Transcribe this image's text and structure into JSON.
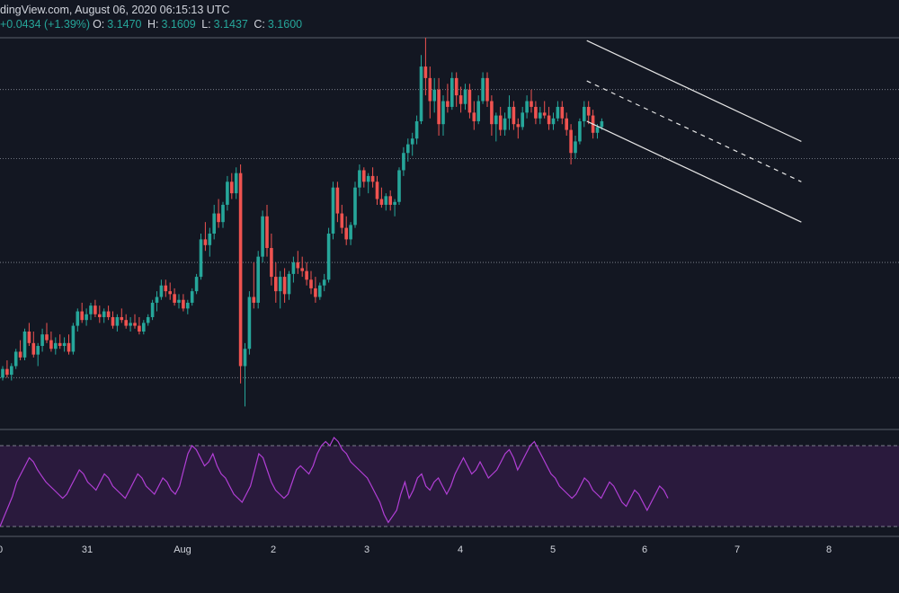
{
  "header": {
    "title_line": "dingView.com, August 06, 2020 06:15:13 UTC",
    "change": "+0.0434 (+1.39%)",
    "o_label": "O:",
    "o_value": "3.1470",
    "h_label": "H:",
    "h_value": "3.1609",
    "l_label": "L:",
    "l_value": "3.1437",
    "c_label": "C:",
    "c_value": "3.1600"
  },
  "colors": {
    "background": "#131722",
    "up": "#26a69a",
    "down": "#ef5350",
    "rsi": "#b23fd6",
    "rsi_band": "#2a1a3d",
    "channel": "#e6e6e6",
    "grid": "#8a8f99"
  },
  "chart_data": {
    "type": "candlestick",
    "x_axis": {
      "ticks": [
        "0",
        "31",
        "Aug",
        "2",
        "3",
        "4",
        "5",
        "6",
        "7",
        "8"
      ]
    },
    "y_range": [
      2.72,
      3.4
    ],
    "gridlines": [
      2.81,
      3.01,
      3.19,
      3.31
    ],
    "candles": [
      {
        "o": 2.81,
        "h": 2.83,
        "l": 2.805,
        "c": 2.825
      },
      {
        "o": 2.825,
        "h": 2.84,
        "l": 2.81,
        "c": 2.815
      },
      {
        "o": 2.815,
        "h": 2.835,
        "l": 2.805,
        "c": 2.83
      },
      {
        "o": 2.83,
        "h": 2.86,
        "l": 2.825,
        "c": 2.855
      },
      {
        "o": 2.855,
        "h": 2.875,
        "l": 2.84,
        "c": 2.845
      },
      {
        "o": 2.845,
        "h": 2.895,
        "l": 2.84,
        "c": 2.89
      },
      {
        "o": 2.89,
        "h": 2.905,
        "l": 2.865,
        "c": 2.87
      },
      {
        "o": 2.87,
        "h": 2.89,
        "l": 2.845,
        "c": 2.85
      },
      {
        "o": 2.85,
        "h": 2.87,
        "l": 2.83,
        "c": 2.865
      },
      {
        "o": 2.865,
        "h": 2.895,
        "l": 2.855,
        "c": 2.885
      },
      {
        "o": 2.885,
        "h": 2.905,
        "l": 2.87,
        "c": 2.875
      },
      {
        "o": 2.875,
        "h": 2.89,
        "l": 2.855,
        "c": 2.86
      },
      {
        "o": 2.86,
        "h": 2.88,
        "l": 2.85,
        "c": 2.87
      },
      {
        "o": 2.87,
        "h": 2.885,
        "l": 2.86,
        "c": 2.865
      },
      {
        "o": 2.865,
        "h": 2.88,
        "l": 2.855,
        "c": 2.87
      },
      {
        "o": 2.87,
        "h": 2.885,
        "l": 2.85,
        "c": 2.855
      },
      {
        "o": 2.855,
        "h": 2.905,
        "l": 2.85,
        "c": 2.9
      },
      {
        "o": 2.9,
        "h": 2.93,
        "l": 2.89,
        "c": 2.925
      },
      {
        "o": 2.925,
        "h": 2.94,
        "l": 2.905,
        "c": 2.91
      },
      {
        "o": 2.91,
        "h": 2.93,
        "l": 2.9,
        "c": 2.92
      },
      {
        "o": 2.92,
        "h": 2.94,
        "l": 2.91,
        "c": 2.935
      },
      {
        "o": 2.935,
        "h": 2.945,
        "l": 2.915,
        "c": 2.92
      },
      {
        "o": 2.92,
        "h": 2.935,
        "l": 2.905,
        "c": 2.915
      },
      {
        "o": 2.915,
        "h": 2.93,
        "l": 2.905,
        "c": 2.925
      },
      {
        "o": 2.925,
        "h": 2.935,
        "l": 2.91,
        "c": 2.915
      },
      {
        "o": 2.915,
        "h": 2.925,
        "l": 2.895,
        "c": 2.9
      },
      {
        "o": 2.9,
        "h": 2.92,
        "l": 2.89,
        "c": 2.915
      },
      {
        "o": 2.915,
        "h": 2.93,
        "l": 2.905,
        "c": 2.91
      },
      {
        "o": 2.91,
        "h": 2.92,
        "l": 2.895,
        "c": 2.9
      },
      {
        "o": 2.9,
        "h": 2.915,
        "l": 2.89,
        "c": 2.905
      },
      {
        "o": 2.905,
        "h": 2.92,
        "l": 2.895,
        "c": 2.9
      },
      {
        "o": 2.9,
        "h": 2.915,
        "l": 2.885,
        "c": 2.89
      },
      {
        "o": 2.89,
        "h": 2.91,
        "l": 2.885,
        "c": 2.905
      },
      {
        "o": 2.905,
        "h": 2.92,
        "l": 2.9,
        "c": 2.915
      },
      {
        "o": 2.915,
        "h": 2.945,
        "l": 2.91,
        "c": 2.94
      },
      {
        "o": 2.94,
        "h": 2.96,
        "l": 2.925,
        "c": 2.95
      },
      {
        "o": 2.95,
        "h": 2.98,
        "l": 2.945,
        "c": 2.97
      },
      {
        "o": 2.97,
        "h": 2.98,
        "l": 2.95,
        "c": 2.96
      },
      {
        "o": 2.96,
        "h": 2.975,
        "l": 2.945,
        "c": 2.955
      },
      {
        "o": 2.955,
        "h": 2.965,
        "l": 2.935,
        "c": 2.94
      },
      {
        "o": 2.94,
        "h": 2.955,
        "l": 2.93,
        "c": 2.945
      },
      {
        "o": 2.945,
        "h": 2.955,
        "l": 2.925,
        "c": 2.93
      },
      {
        "o": 2.93,
        "h": 2.945,
        "l": 2.92,
        "c": 2.94
      },
      {
        "o": 2.94,
        "h": 2.965,
        "l": 2.935,
        "c": 2.96
      },
      {
        "o": 2.96,
        "h": 2.99,
        "l": 2.955,
        "c": 2.985
      },
      {
        "o": 2.985,
        "h": 3.06,
        "l": 2.98,
        "c": 3.05
      },
      {
        "o": 3.05,
        "h": 3.08,
        "l": 3.03,
        "c": 3.04
      },
      {
        "o": 3.04,
        "h": 3.07,
        "l": 3.02,
        "c": 3.06
      },
      {
        "o": 3.06,
        "h": 3.11,
        "l": 3.05,
        "c": 3.095
      },
      {
        "o": 3.095,
        "h": 3.12,
        "l": 3.07,
        "c": 3.08
      },
      {
        "o": 3.08,
        "h": 3.115,
        "l": 3.07,
        "c": 3.11
      },
      {
        "o": 3.11,
        "h": 3.16,
        "l": 3.1,
        "c": 3.15
      },
      {
        "o": 3.15,
        "h": 3.165,
        "l": 3.12,
        "c": 3.13
      },
      {
        "o": 3.13,
        "h": 3.175,
        "l": 3.12,
        "c": 3.165
      },
      {
        "o": 3.165,
        "h": 3.18,
        "l": 2.8,
        "c": 2.83
      },
      {
        "o": 2.83,
        "h": 2.87,
        "l": 2.76,
        "c": 2.86
      },
      {
        "o": 2.86,
        "h": 2.96,
        "l": 2.85,
        "c": 2.95
      },
      {
        "o": 2.95,
        "h": 3.01,
        "l": 2.93,
        "c": 2.94
      },
      {
        "o": 2.94,
        "h": 3.03,
        "l": 2.93,
        "c": 3.02
      },
      {
        "o": 3.02,
        "h": 3.1,
        "l": 3.01,
        "c": 3.09
      },
      {
        "o": 3.09,
        "h": 3.11,
        "l": 3.02,
        "c": 3.035
      },
      {
        "o": 3.035,
        "h": 3.06,
        "l": 2.97,
        "c": 2.985
      },
      {
        "o": 2.985,
        "h": 3.01,
        "l": 2.94,
        "c": 2.96
      },
      {
        "o": 2.96,
        "h": 2.995,
        "l": 2.93,
        "c": 2.985
      },
      {
        "o": 2.985,
        "h": 3.0,
        "l": 2.94,
        "c": 2.955
      },
      {
        "o": 2.955,
        "h": 2.995,
        "l": 2.945,
        "c": 2.99
      },
      {
        "o": 2.99,
        "h": 3.02,
        "l": 2.975,
        "c": 3.01
      },
      {
        "o": 3.01,
        "h": 3.03,
        "l": 2.99,
        "c": 3.0
      },
      {
        "o": 3.0,
        "h": 3.02,
        "l": 2.985,
        "c": 2.995
      },
      {
        "o": 2.995,
        "h": 3.01,
        "l": 2.97,
        "c": 2.98
      },
      {
        "o": 2.98,
        "h": 2.995,
        "l": 2.955,
        "c": 2.965
      },
      {
        "o": 2.965,
        "h": 2.985,
        "l": 2.94,
        "c": 2.95
      },
      {
        "o": 2.95,
        "h": 2.975,
        "l": 2.945,
        "c": 2.97
      },
      {
        "o": 2.97,
        "h": 2.99,
        "l": 2.96,
        "c": 2.98
      },
      {
        "o": 2.98,
        "h": 3.07,
        "l": 2.975,
        "c": 3.06
      },
      {
        "o": 3.06,
        "h": 3.15,
        "l": 3.05,
        "c": 3.14
      },
      {
        "o": 3.14,
        "h": 3.15,
        "l": 3.08,
        "c": 3.095
      },
      {
        "o": 3.095,
        "h": 3.11,
        "l": 3.06,
        "c": 3.07
      },
      {
        "o": 3.07,
        "h": 3.09,
        "l": 3.04,
        "c": 3.05
      },
      {
        "o": 3.05,
        "h": 3.08,
        "l": 3.04,
        "c": 3.075
      },
      {
        "o": 3.075,
        "h": 3.15,
        "l": 3.07,
        "c": 3.14
      },
      {
        "o": 3.14,
        "h": 3.18,
        "l": 3.125,
        "c": 3.17
      },
      {
        "o": 3.17,
        "h": 3.175,
        "l": 3.14,
        "c": 3.15
      },
      {
        "o": 3.15,
        "h": 3.165,
        "l": 3.13,
        "c": 3.16
      },
      {
        "o": 3.16,
        "h": 3.175,
        "l": 3.14,
        "c": 3.15
      },
      {
        "o": 3.15,
        "h": 3.16,
        "l": 3.11,
        "c": 3.12
      },
      {
        "o": 3.12,
        "h": 3.14,
        "l": 3.105,
        "c": 3.11
      },
      {
        "o": 3.11,
        "h": 3.13,
        "l": 3.1,
        "c": 3.125
      },
      {
        "o": 3.125,
        "h": 3.135,
        "l": 3.1,
        "c": 3.11
      },
      {
        "o": 3.11,
        "h": 3.12,
        "l": 3.09,
        "c": 3.115
      },
      {
        "o": 3.115,
        "h": 3.175,
        "l": 3.11,
        "c": 3.17
      },
      {
        "o": 3.17,
        "h": 3.21,
        "l": 3.16,
        "c": 3.2
      },
      {
        "o": 3.2,
        "h": 3.225,
        "l": 3.185,
        "c": 3.215
      },
      {
        "o": 3.215,
        "h": 3.235,
        "l": 3.195,
        "c": 3.225
      },
      {
        "o": 3.225,
        "h": 3.265,
        "l": 3.215,
        "c": 3.255
      },
      {
        "o": 3.255,
        "h": 3.37,
        "l": 3.25,
        "c": 3.35
      },
      {
        "o": 3.35,
        "h": 3.4,
        "l": 3.3,
        "c": 3.33
      },
      {
        "o": 3.33,
        "h": 3.35,
        "l": 3.26,
        "c": 3.29
      },
      {
        "o": 3.29,
        "h": 3.33,
        "l": 3.27,
        "c": 3.31
      },
      {
        "o": 3.31,
        "h": 3.33,
        "l": 3.23,
        "c": 3.25
      },
      {
        "o": 3.25,
        "h": 3.3,
        "l": 3.23,
        "c": 3.29
      },
      {
        "o": 3.29,
        "h": 3.32,
        "l": 3.27,
        "c": 3.28
      },
      {
        "o": 3.28,
        "h": 3.34,
        "l": 3.275,
        "c": 3.33
      },
      {
        "o": 3.33,
        "h": 3.34,
        "l": 3.28,
        "c": 3.3
      },
      {
        "o": 3.3,
        "h": 3.315,
        "l": 3.27,
        "c": 3.285
      },
      {
        "o": 3.285,
        "h": 3.32,
        "l": 3.275,
        "c": 3.31
      },
      {
        "o": 3.31,
        "h": 3.32,
        "l": 3.26,
        "c": 3.27
      },
      {
        "o": 3.27,
        "h": 3.29,
        "l": 3.24,
        "c": 3.255
      },
      {
        "o": 3.255,
        "h": 3.3,
        "l": 3.25,
        "c": 3.29
      },
      {
        "o": 3.29,
        "h": 3.34,
        "l": 3.285,
        "c": 3.33
      },
      {
        "o": 3.33,
        "h": 3.34,
        "l": 3.28,
        "c": 3.29
      },
      {
        "o": 3.29,
        "h": 3.3,
        "l": 3.23,
        "c": 3.25
      },
      {
        "o": 3.25,
        "h": 3.27,
        "l": 3.22,
        "c": 3.265
      },
      {
        "o": 3.265,
        "h": 3.28,
        "l": 3.23,
        "c": 3.24
      },
      {
        "o": 3.24,
        "h": 3.27,
        "l": 3.23,
        "c": 3.26
      },
      {
        "o": 3.26,
        "h": 3.3,
        "l": 3.24,
        "c": 3.28
      },
      {
        "o": 3.28,
        "h": 3.29,
        "l": 3.24,
        "c": 3.25
      },
      {
        "o": 3.25,
        "h": 3.26,
        "l": 3.225,
        "c": 3.245
      },
      {
        "o": 3.245,
        "h": 3.28,
        "l": 3.24,
        "c": 3.27
      },
      {
        "o": 3.27,
        "h": 3.3,
        "l": 3.26,
        "c": 3.29
      },
      {
        "o": 3.29,
        "h": 3.31,
        "l": 3.27,
        "c": 3.28
      },
      {
        "o": 3.28,
        "h": 3.29,
        "l": 3.25,
        "c": 3.26
      },
      {
        "o": 3.26,
        "h": 3.28,
        "l": 3.25,
        "c": 3.27
      },
      {
        "o": 3.27,
        "h": 3.29,
        "l": 3.26,
        "c": 3.265
      },
      {
        "o": 3.265,
        "h": 3.28,
        "l": 3.24,
        "c": 3.25
      },
      {
        "o": 3.25,
        "h": 3.27,
        "l": 3.24,
        "c": 3.26
      },
      {
        "o": 3.26,
        "h": 3.29,
        "l": 3.255,
        "c": 3.28
      },
      {
        "o": 3.28,
        "h": 3.29,
        "l": 3.25,
        "c": 3.26
      },
      {
        "o": 3.26,
        "h": 3.27,
        "l": 3.23,
        "c": 3.24
      },
      {
        "o": 3.24,
        "h": 3.25,
        "l": 3.18,
        "c": 3.2
      },
      {
        "o": 3.2,
        "h": 3.23,
        "l": 3.19,
        "c": 3.22
      },
      {
        "o": 3.22,
        "h": 3.26,
        "l": 3.215,
        "c": 3.255
      },
      {
        "o": 3.255,
        "h": 3.29,
        "l": 3.245,
        "c": 3.28
      },
      {
        "o": 3.28,
        "h": 3.29,
        "l": 3.25,
        "c": 3.265
      },
      {
        "o": 3.265,
        "h": 3.275,
        "l": 3.225,
        "c": 3.235
      },
      {
        "o": 3.235,
        "h": 3.25,
        "l": 3.225,
        "c": 3.245
      },
      {
        "o": 3.245,
        "h": 3.26,
        "l": 3.24,
        "c": 3.255
      }
    ],
    "channel": {
      "upper": [
        {
          "i": 132.6,
          "y": 3.395
        },
        {
          "i": 181.3,
          "y": 3.22
        }
      ],
      "lower": [
        {
          "i": 132.6,
          "y": 3.255
        },
        {
          "i": 181.3,
          "y": 3.08
        }
      ],
      "middle": [
        {
          "i": 132.6,
          "y": 3.325
        },
        {
          "i": 181.3,
          "y": 3.15
        }
      ]
    },
    "rsi": {
      "levels": [
        70,
        30
      ],
      "values": [
        30,
        35,
        40,
        45,
        52,
        56,
        60,
        64,
        62,
        58,
        55,
        52,
        50,
        48,
        46,
        44,
        46,
        50,
        54,
        58,
        56,
        52,
        50,
        48,
        52,
        56,
        54,
        50,
        48,
        46,
        44,
        48,
        52,
        56,
        54,
        50,
        48,
        46,
        50,
        54,
        52,
        48,
        46,
        50,
        58,
        66,
        70,
        68,
        64,
        60,
        62,
        66,
        60,
        56,
        54,
        50,
        46,
        44,
        42,
        46,
        50,
        58,
        66,
        64,
        58,
        52,
        48,
        46,
        44,
        46,
        52,
        58,
        60,
        58,
        56,
        60,
        66,
        70,
        72,
        70,
        74,
        72,
        68,
        66,
        62,
        60,
        58,
        56,
        54,
        50,
        46,
        42,
        36,
        32,
        35,
        38,
        46,
        52,
        44,
        48,
        54,
        56,
        50,
        48,
        52,
        54,
        50,
        46,
        50,
        56,
        60,
        64,
        60,
        56,
        58,
        62,
        58,
        54,
        56,
        58,
        62,
        66,
        68,
        64,
        58,
        62,
        66,
        70,
        72,
        68,
        64,
        60,
        56,
        54,
        50,
        48,
        46,
        44,
        46,
        50,
        54,
        52,
        48,
        46,
        44,
        48,
        52,
        50,
        46,
        42,
        40,
        44,
        48,
        46,
        42,
        38,
        42,
        46,
        50,
        48,
        44
      ]
    }
  }
}
